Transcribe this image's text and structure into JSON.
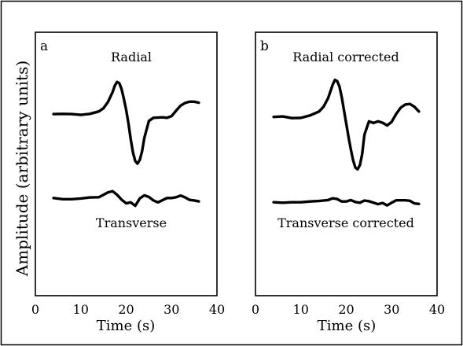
{
  "ylabel": "Amplitude (arbitrary units)",
  "chart_data": [
    {
      "type": "line",
      "panel_label": "a",
      "xlabel": "Time (s)",
      "xlim": [
        0,
        40
      ],
      "xticks": [
        0,
        10,
        20,
        30,
        40
      ],
      "series": [
        {
          "name": "Radial",
          "x": [
            4,
            6,
            8,
            10,
            12,
            14,
            15,
            16,
            17,
            17.5,
            18,
            18.5,
            19,
            19.5,
            20,
            20.5,
            21,
            21.5,
            22,
            22.5,
            23,
            23.5,
            24,
            25,
            26,
            28,
            29,
            30,
            31,
            32,
            33,
            34,
            35,
            36
          ],
          "y": [
            0.48,
            0.49,
            0.48,
            0.45,
            0.49,
            0.59,
            0.72,
            0.98,
            1.38,
            1.65,
            1.8,
            1.75,
            1.5,
            1.1,
            0.65,
            0.1,
            -0.55,
            -1.1,
            -1.45,
            -1.55,
            -1.4,
            -1.05,
            -0.5,
            0.2,
            0.33,
            0.35,
            0.33,
            0.4,
            0.62,
            0.83,
            0.94,
            0.99,
            0.99,
            0.95
          ]
        },
        {
          "name": "Transverse",
          "x": [
            4,
            6,
            8,
            10,
            12,
            14,
            15,
            16,
            17,
            18,
            19,
            20,
            21,
            22,
            23,
            24,
            25,
            26,
            27,
            28,
            29,
            30,
            31,
            32,
            33,
            34,
            35,
            36
          ],
          "y": [
            -2.96,
            -3.01,
            -3.01,
            -2.98,
            -2.94,
            -2.93,
            -2.83,
            -2.73,
            -2.68,
            -2.83,
            -3.03,
            -3.18,
            -3.14,
            -3.28,
            -2.98,
            -2.85,
            -2.92,
            -3.06,
            -3.14,
            -3.05,
            -2.96,
            -2.96,
            -2.93,
            -2.86,
            -2.94,
            -3.04,
            -3.06,
            -3.1
          ]
        }
      ]
    },
    {
      "type": "line",
      "panel_label": "b",
      "xlabel": "Time (s)",
      "xlim": [
        0,
        40
      ],
      "xticks": [
        0,
        10,
        20,
        30,
        40
      ],
      "series": [
        {
          "name": "Radial corrected",
          "x": [
            4,
            6,
            8,
            10,
            12,
            14,
            15,
            16,
            17,
            17.5,
            18,
            18.5,
            19,
            19.5,
            20,
            20.5,
            21,
            21.5,
            22,
            22.5,
            23,
            23.5,
            24,
            25,
            26,
            27,
            28,
            29,
            30,
            31,
            32,
            33,
            34,
            35,
            36
          ],
          "y": [
            0.43,
            0.45,
            0.38,
            0.39,
            0.49,
            0.65,
            0.85,
            1.2,
            1.75,
            1.95,
            1.9,
            1.68,
            1.25,
            0.7,
            0.15,
            -0.4,
            -0.9,
            -1.35,
            -1.65,
            -1.72,
            -1.55,
            -1.1,
            -0.3,
            0.25,
            0.18,
            0.25,
            0.19,
            0.08,
            0.23,
            0.55,
            0.81,
            0.94,
            0.96,
            0.85,
            0.65
          ]
        },
        {
          "name": "Transverse corrected",
          "x": [
            4,
            6,
            8,
            10,
            12,
            14,
            16,
            17,
            18,
            19,
            20,
            21,
            22,
            23,
            24,
            25,
            26,
            27,
            28,
            29,
            30,
            31,
            32,
            33,
            34,
            35,
            36
          ],
          "y": [
            -3.07,
            -3.09,
            -3.07,
            -3.07,
            -3.04,
            -3.02,
            -2.98,
            -2.91,
            -2.94,
            -3.04,
            -3.04,
            -2.98,
            -3.06,
            -3.09,
            -3.0,
            -3.03,
            -3.09,
            -3.15,
            -3.1,
            -3.2,
            -3.09,
            -2.99,
            -2.99,
            -2.99,
            -3.01,
            -3.12,
            -3.14
          ]
        }
      ]
    }
  ]
}
